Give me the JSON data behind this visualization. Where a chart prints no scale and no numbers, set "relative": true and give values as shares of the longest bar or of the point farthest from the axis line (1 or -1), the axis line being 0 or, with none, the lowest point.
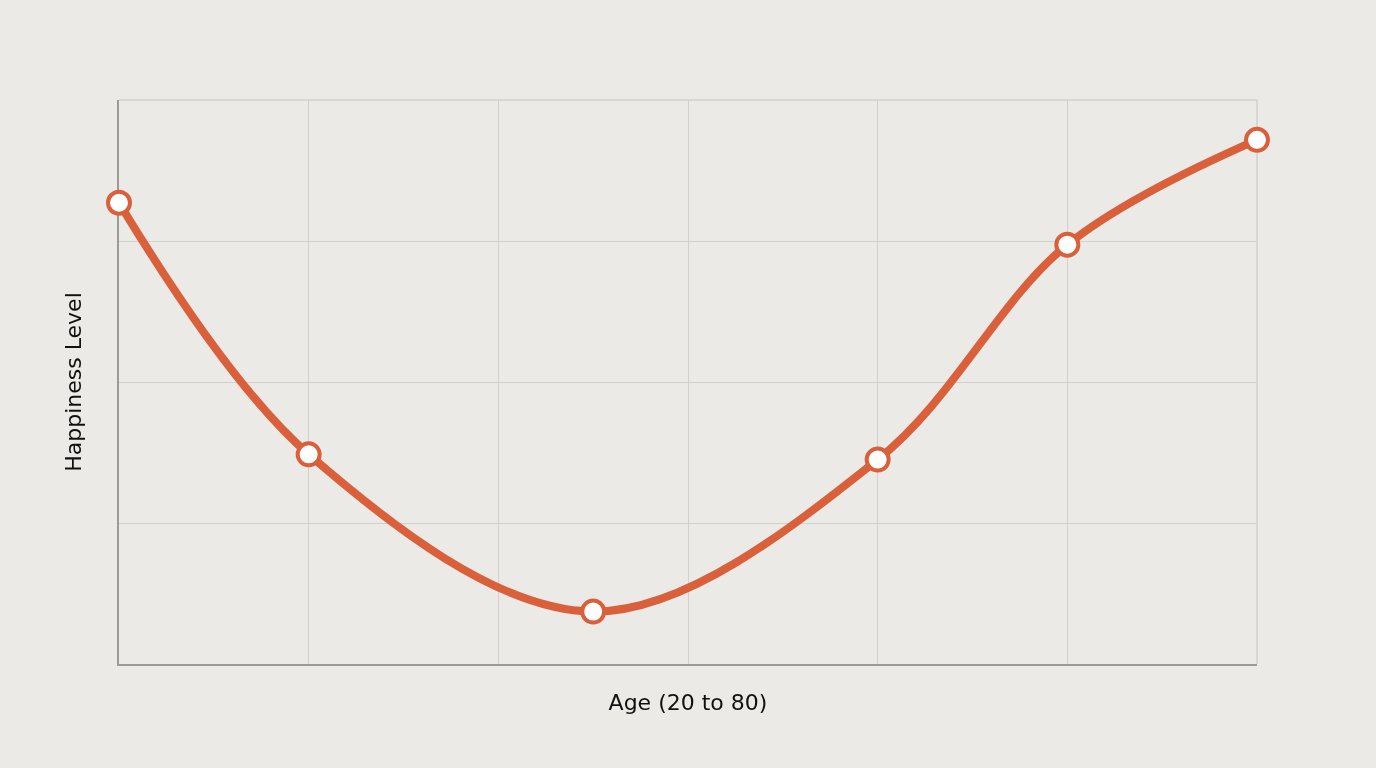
{
  "chart_data": {
    "type": "line",
    "xlabel": "Age (20 to 80)",
    "ylabel": "Happiness Level",
    "categories": [
      null,
      null,
      null,
      null,
      null,
      null,
      null,
      null,
      null,
      null,
      null,
      null,
      null
    ],
    "relative": true,
    "series": [
      {
        "color": "#d9603b",
        "values": [
          0.88,
          null,
          0.4,
          null,
          null,
          0.1,
          null,
          null,
          0.39,
          null,
          0.8,
          null,
          1.0
        ]
      }
    ],
    "grid": true,
    "marker": "circle",
    "line_style": "solid",
    "tick_labels": false
  }
}
